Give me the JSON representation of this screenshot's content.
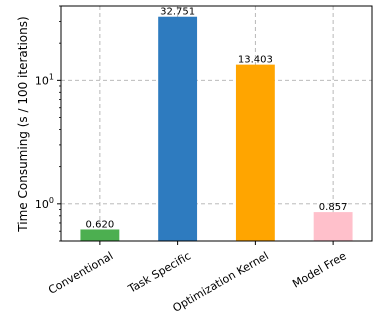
{
  "chart_data": {
    "type": "bar",
    "categories": [
      "Conventional",
      "Task Specific",
      "Optimization Kernel",
      "Model Free"
    ],
    "values": [
      0.62,
      32.751,
      13.403,
      0.857
    ],
    "value_labels": [
      "0.620",
      "32.751",
      "13.403",
      "0.857"
    ],
    "colors": [
      "#4caf50",
      "#2e7bbf",
      "#ffa500",
      "#ffc0cb"
    ],
    "title": "",
    "xlabel": "",
    "ylabel": "Time Consuming (s / 100 iterations)",
    "yscale": "log",
    "ylim": [
      0.5,
      40
    ],
    "yticks": [
      {
        "value": 1,
        "base": "10",
        "exp": "0"
      },
      {
        "value": 10,
        "base": "10",
        "exp": "1"
      }
    ],
    "grid": true
  }
}
